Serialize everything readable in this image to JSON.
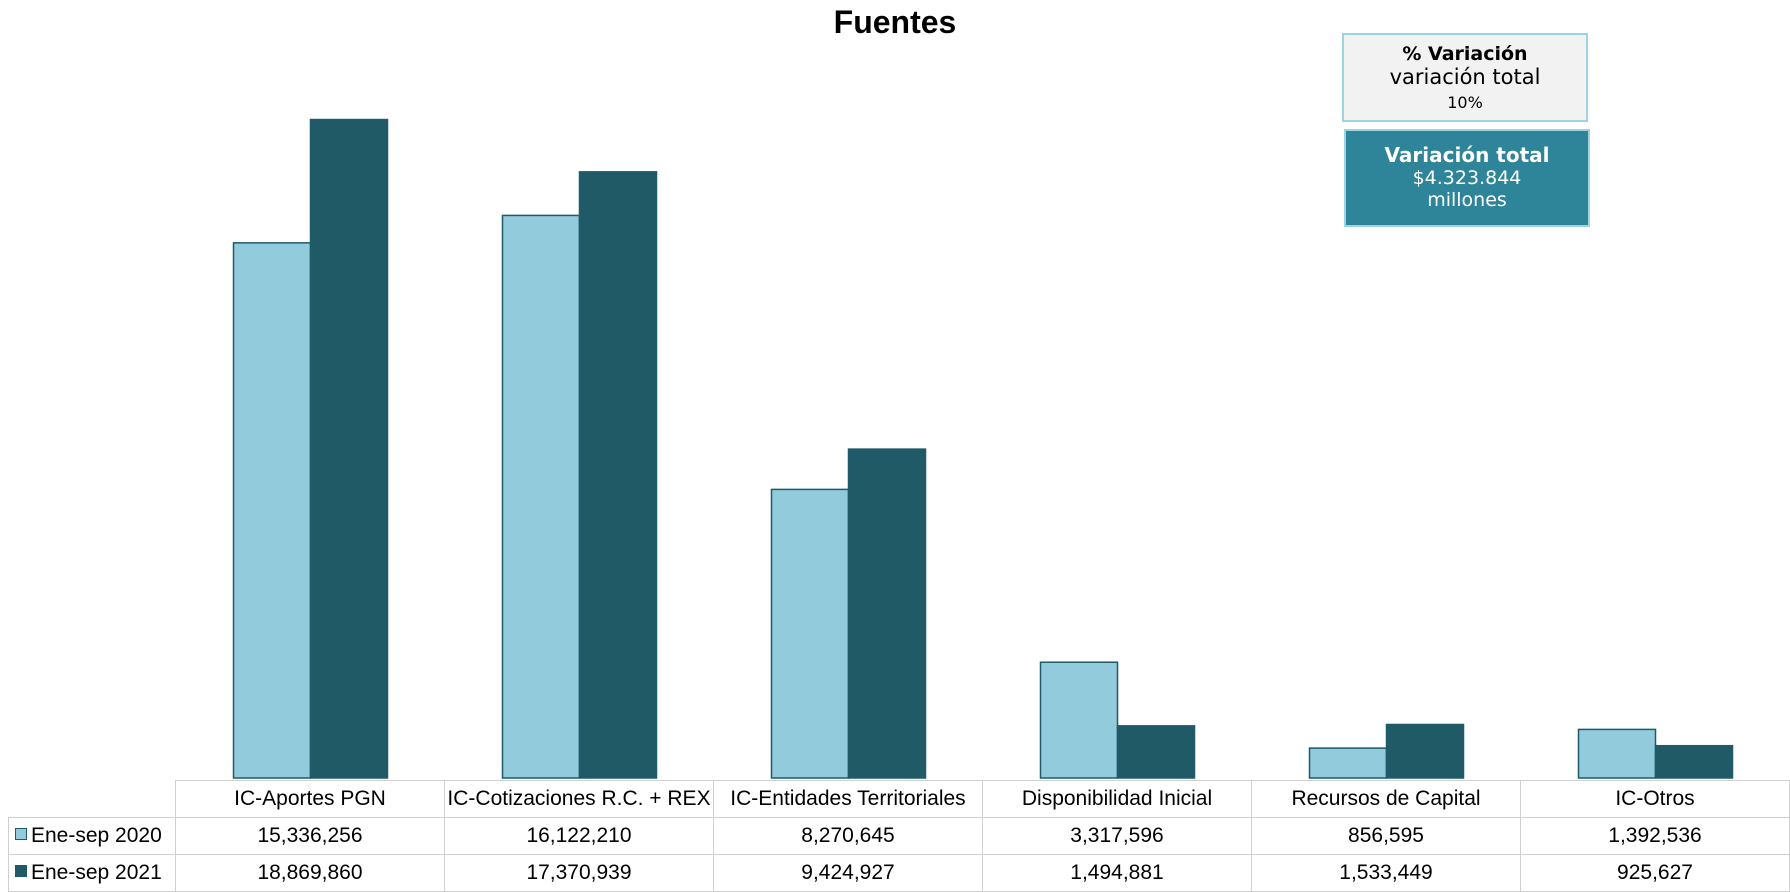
{
  "chart_data": {
    "type": "bar",
    "title": "Fuentes",
    "categories": [
      "IC-Aportes PGN",
      "IC-Cotizaciones R.C. + REX",
      "IC-Entidades Territoriales",
      "Disponibilidad Inicial",
      "Recursos de Capital",
      "IC-Otros"
    ],
    "series": [
      {
        "name": "Ene-sep 2020",
        "values": [
          15336256,
          16122210,
          8270645,
          3317596,
          856595,
          1392536
        ],
        "labels": [
          "15,336,256",
          "16,122,210",
          "8,270,645",
          "3,317,596",
          "856,595",
          "1,392,536"
        ],
        "color": "#92cbdc"
      },
      {
        "name": "Ene-sep 2021",
        "values": [
          18869860,
          17370939,
          9424927,
          1494881,
          1533449,
          925627
        ],
        "labels": [
          "18,869,860",
          "17,370,939",
          "9,424,927",
          "1,494,881",
          "1,533,449",
          "925,627"
        ],
        "color": "#215a67"
      }
    ],
    "ylim": [
      0,
      19000000
    ],
    "xlabel": "",
    "ylabel": "",
    "grid": false,
    "legend": "data-table"
  },
  "variation_pct": {
    "title": "% Variación",
    "subtitle": "variación total",
    "value": "10%"
  },
  "variation_total": {
    "title": "Variación total",
    "value": "$4.323.844",
    "unit": "millones"
  },
  "colors": {
    "bar_border": "#1f5a6a",
    "pct_box_bg": "#f2f2f2",
    "box_border": "#9dd3e3",
    "total_box_bg": "#2e8499"
  }
}
